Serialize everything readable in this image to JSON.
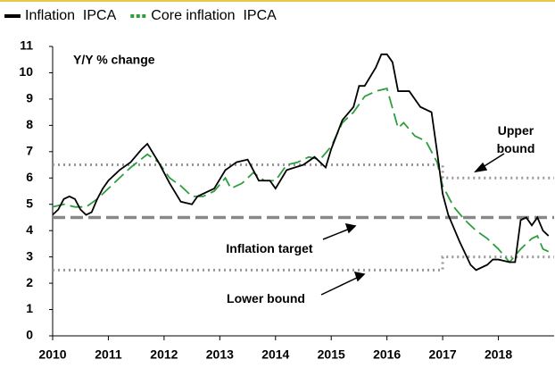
{
  "chart_data": {
    "type": "line",
    "axis_label": "Y/Y % change",
    "xlim": [
      2010,
      2019
    ],
    "xticks": [
      2010,
      2011,
      2012,
      2013,
      2014,
      2015,
      2016,
      2017,
      2018
    ],
    "ylim": [
      0,
      11
    ],
    "yticks": [
      0,
      1,
      2,
      3,
      4,
      5,
      6,
      7,
      8,
      9,
      10,
      11
    ],
    "series": [
      {
        "name": "Inflation  IPCA",
        "color": "#000000",
        "style": "solid",
        "x": [
          2010.0,
          2010.1,
          2010.2,
          2010.3,
          2010.4,
          2010.5,
          2010.6,
          2010.7,
          2010.8,
          2010.9,
          2011.0,
          2011.2,
          2011.4,
          2011.6,
          2011.7,
          2011.9,
          2012.1,
          2012.3,
          2012.5,
          2012.6,
          2012.9,
          2013.1,
          2013.3,
          2013.5,
          2013.7,
          2013.9,
          2014.0,
          2014.2,
          2014.5,
          2014.7,
          2014.9,
          2015.0,
          2015.2,
          2015.4,
          2015.5,
          2015.6,
          2015.8,
          2015.9,
          2016.0,
          2016.1,
          2016.2,
          2016.4,
          2016.6,
          2016.8,
          2016.9,
          2017.0,
          2017.1,
          2017.3,
          2017.5,
          2017.6,
          2017.8,
          2017.9,
          2018.0,
          2018.2,
          2018.3,
          2018.4,
          2018.5,
          2018.6,
          2018.7,
          2018.8,
          2018.9
        ],
        "values": [
          4.6,
          4.8,
          5.2,
          5.3,
          5.2,
          4.8,
          4.6,
          4.7,
          5.2,
          5.6,
          5.9,
          6.3,
          6.6,
          7.1,
          7.3,
          6.6,
          5.8,
          5.1,
          5.0,
          5.3,
          5.6,
          6.3,
          6.6,
          6.7,
          5.9,
          5.9,
          5.6,
          6.3,
          6.5,
          6.8,
          6.4,
          7.1,
          8.2,
          8.7,
          9.5,
          9.5,
          10.2,
          10.7,
          10.7,
          10.4,
          9.3,
          9.3,
          8.7,
          8.5,
          7.0,
          5.4,
          4.6,
          3.6,
          2.7,
          2.5,
          2.7,
          2.9,
          2.9,
          2.8,
          2.8,
          4.4,
          4.5,
          4.2,
          4.5,
          4.0,
          3.8
        ]
      },
      {
        "name": "Core inflation  IPCA",
        "color": "#2e9e3e",
        "style": "dashed",
        "x": [
          2010.0,
          2010.2,
          2010.4,
          2010.6,
          2010.8,
          2011.0,
          2011.2,
          2011.4,
          2011.7,
          2011.9,
          2012.1,
          2012.3,
          2012.5,
          2012.7,
          2012.9,
          2013.1,
          2013.2,
          2013.4,
          2013.6,
          2013.8,
          2014.0,
          2014.2,
          2014.4,
          2014.6,
          2014.8,
          2015.0,
          2015.2,
          2015.4,
          2015.6,
          2015.8,
          2016.0,
          2016.2,
          2016.3,
          2016.5,
          2016.7,
          2016.9,
          2017.0,
          2017.2,
          2017.4,
          2017.6,
          2017.8,
          2018.0,
          2018.2,
          2018.4,
          2018.6,
          2018.7,
          2018.8,
          2018.9
        ],
        "values": [
          4.9,
          5.0,
          4.9,
          4.9,
          5.2,
          5.6,
          6.0,
          6.4,
          6.9,
          6.6,
          6.0,
          5.7,
          5.3,
          5.3,
          5.5,
          6.0,
          5.6,
          5.8,
          6.2,
          5.9,
          5.9,
          6.5,
          6.6,
          6.8,
          6.7,
          7.2,
          8.1,
          8.5,
          9.1,
          9.3,
          9.4,
          7.9,
          8.1,
          7.6,
          7.4,
          6.6,
          5.7,
          4.9,
          4.4,
          4.0,
          3.7,
          3.3,
          2.8,
          3.3,
          3.7,
          3.8,
          3.3,
          3.2
        ]
      }
    ],
    "reference_lines": [
      {
        "label": "Upper bound",
        "style": "dotted",
        "color": "#999999",
        "x": [
          2010,
          2017,
          2017,
          2019
        ],
        "values": [
          6.5,
          6.5,
          6.0,
          6.0
        ]
      },
      {
        "label": "Inflation target",
        "style": "dashed",
        "color": "#888888",
        "x": [
          2010,
          2019
        ],
        "values": [
          4.5,
          4.5
        ]
      },
      {
        "label": "Lower bound",
        "style": "dotted",
        "color": "#999999",
        "x": [
          2010,
          2017,
          2017,
          2019
        ],
        "values": [
          2.5,
          2.5,
          3.0,
          3.0
        ]
      }
    ]
  }
}
